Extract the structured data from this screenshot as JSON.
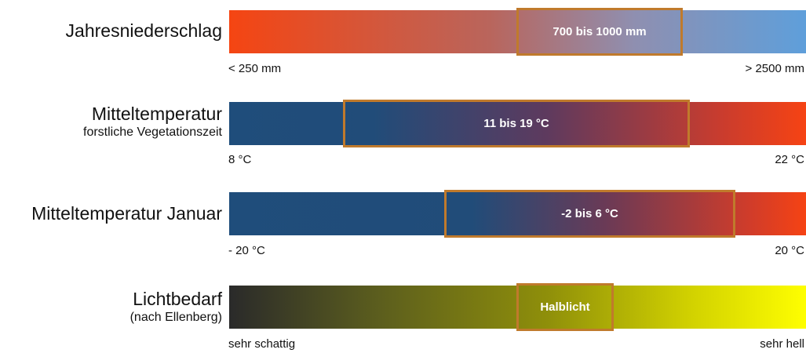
{
  "rows": [
    {
      "id": "jahresniederschlag",
      "label": "Jahresniederschlag",
      "sublabel": "",
      "range_label": "700 bis 1000 mm",
      "min_label": "< 250 mm",
      "max_label": "> 2500 mm"
    },
    {
      "id": "mitteltemperatur-vegetationszeit",
      "label": "Mitteltemperatur",
      "sublabel": "forstliche Vegetationszeit",
      "range_label": "11 bis 19 °C",
      "min_label": "8 °C",
      "max_label": "22 °C"
    },
    {
      "id": "mitteltemperatur-januar",
      "label": "Mitteltemperatur Januar",
      "sublabel": "",
      "range_label": "-2 bis 6 °C",
      "min_label": "- 20 °C",
      "max_label": "20 °C"
    },
    {
      "id": "lichtbedarf",
      "label": "Lichtbedarf",
      "sublabel": "(nach Ellenberg)",
      "range_label": "Halblicht",
      "min_label": "sehr schattig",
      "max_label": "sehr hell"
    }
  ],
  "colors": {
    "range_border": "#c07a2c",
    "range_text": "#ffffff"
  }
}
